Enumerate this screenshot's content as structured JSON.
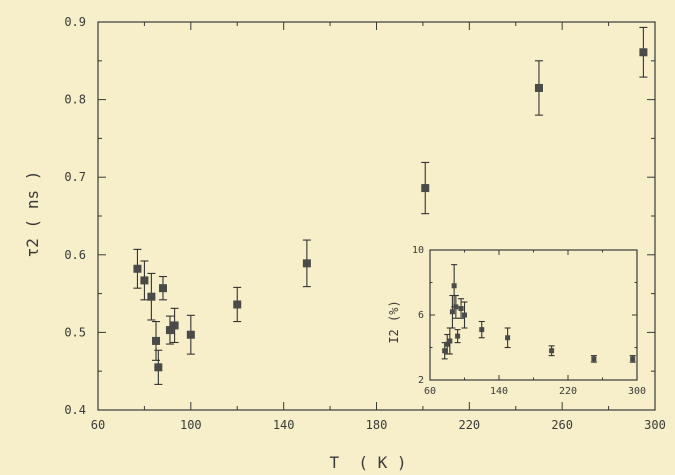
{
  "chart_data": [
    {
      "type": "scatter",
      "xlabel": "T  ( K )",
      "ylabel": "τ2 ( ns )",
      "xlim": [
        60,
        300
      ],
      "ylim": [
        0.4,
        0.9
      ],
      "xticks": [
        "60",
        "100",
        "140",
        "180",
        "220",
        "260",
        "300"
      ],
      "yticks": [
        "0.4",
        "0.5",
        "0.6",
        "0.7",
        "0.8",
        "0.9"
      ],
      "grid": false,
      "marker": "square",
      "color": "#4a4a4a",
      "points": [
        {
          "x": 77,
          "y": 0.582,
          "err": 0.025
        },
        {
          "x": 80,
          "y": 0.567,
          "err": 0.025
        },
        {
          "x": 83,
          "y": 0.546,
          "err": 0.03
        },
        {
          "x": 85,
          "y": 0.489,
          "err": 0.025
        },
        {
          "x": 86,
          "y": 0.455,
          "err": 0.022
        },
        {
          "x": 88,
          "y": 0.557,
          "err": 0.015
        },
        {
          "x": 91,
          "y": 0.503,
          "err": 0.018
        },
        {
          "x": 93,
          "y": 0.509,
          "err": 0.022
        },
        {
          "x": 100,
          "y": 0.497,
          "err": 0.025
        },
        {
          "x": 120,
          "y": 0.536,
          "err": 0.022
        },
        {
          "x": 150,
          "y": 0.589,
          "err": 0.03
        },
        {
          "x": 201,
          "y": 0.686,
          "err": 0.033
        },
        {
          "x": 250,
          "y": 0.815,
          "err": 0.035
        },
        {
          "x": 295,
          "y": 0.861,
          "err": 0.032
        }
      ]
    },
    {
      "type": "scatter",
      "inset": true,
      "xlabel": "",
      "ylabel": "I2 (%)",
      "xlim": [
        60,
        300
      ],
      "ylim": [
        2,
        10
      ],
      "xticks": [
        "60",
        "140",
        "220",
        "300"
      ],
      "yticks": [
        "2",
        "6",
        "10"
      ],
      "grid": false,
      "marker": "square",
      "color": "#4a4a4a",
      "points": [
        {
          "x": 77,
          "y": 3.8,
          "err": 0.5
        },
        {
          "x": 80,
          "y": 4.2,
          "err": 0.6
        },
        {
          "x": 83,
          "y": 4.4,
          "err": 0.8
        },
        {
          "x": 86,
          "y": 6.2,
          "err": 1.0
        },
        {
          "x": 88,
          "y": 7.8,
          "err": 1.3
        },
        {
          "x": 90,
          "y": 6.5,
          "err": 0.7
        },
        {
          "x": 92,
          "y": 4.7,
          "err": 0.4
        },
        {
          "x": 96,
          "y": 6.4,
          "err": 0.6
        },
        {
          "x": 100,
          "y": 6.0,
          "err": 0.8
        },
        {
          "x": 120,
          "y": 5.1,
          "err": 0.5
        },
        {
          "x": 150,
          "y": 4.6,
          "err": 0.6
        },
        {
          "x": 201,
          "y": 3.8,
          "err": 0.3
        },
        {
          "x": 250,
          "y": 3.3,
          "err": 0.2
        },
        {
          "x": 295,
          "y": 3.3,
          "err": 0.2
        }
      ]
    }
  ]
}
